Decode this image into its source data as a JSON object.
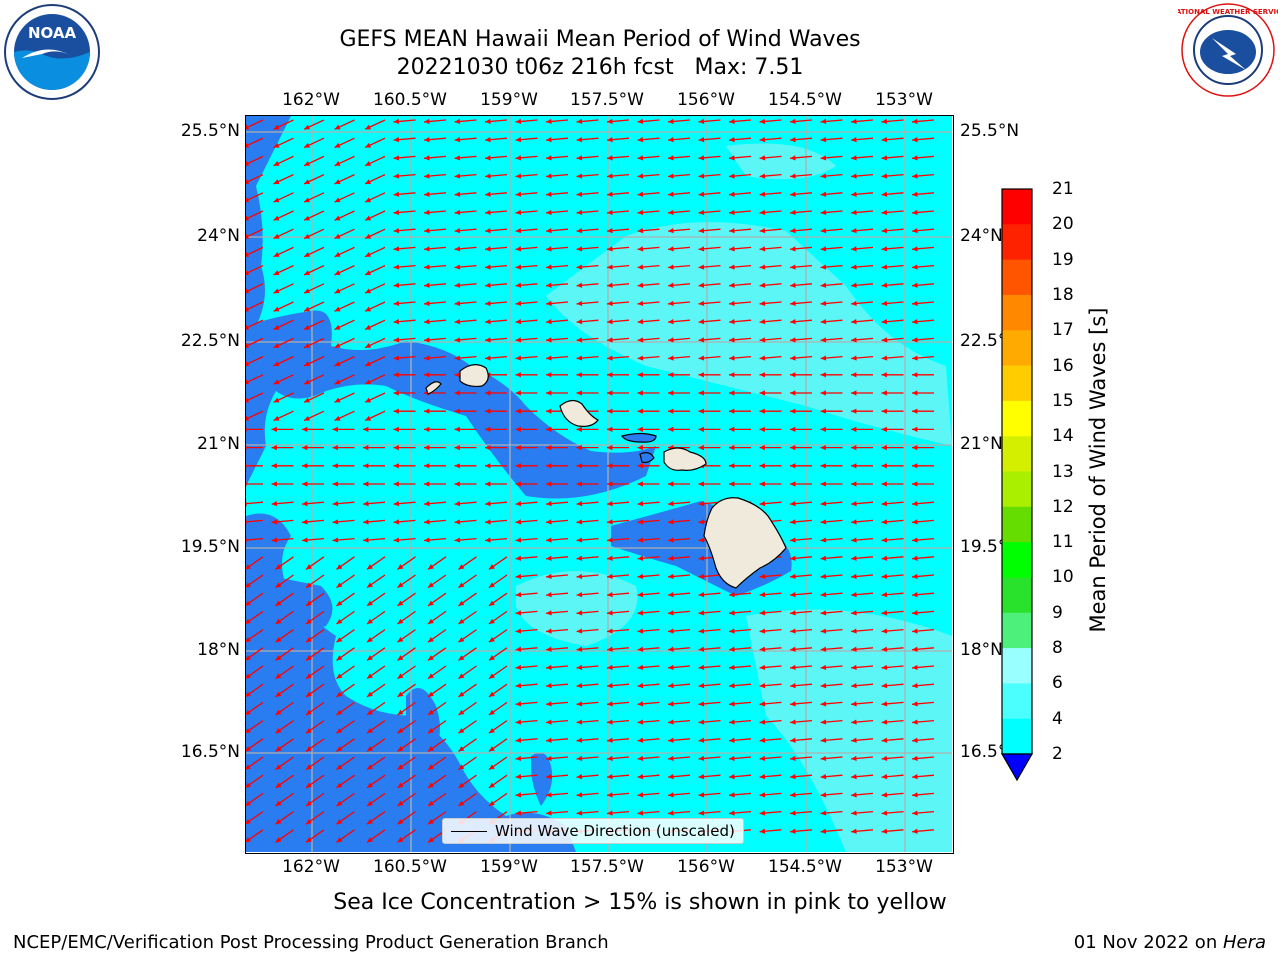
{
  "title": {
    "line1": "GEFS MEAN Hawaii Mean Period of Wind Waves",
    "line2": "20221030 t06z 216h fcst   Max: 7.51"
  },
  "axes": {
    "lon_labels": [
      "162°W",
      "160.5°W",
      "159°W",
      "157.5°W",
      "156°W",
      "154.5°W",
      "153°W"
    ],
    "lat_labels": [
      "25.5°N",
      "24°N",
      "22.5°N",
      "21°N",
      "19.5°N",
      "18°N",
      "16.5°N"
    ]
  },
  "map": {
    "legend_label": "Wind Wave Direction (unscaled)",
    "land_color": "#efeadb",
    "ocean_shallow_color": "#2a7df0",
    "ocean_color": "#00ffff",
    "ocean_light_color": "#5cf6f6",
    "arrow_color": "#ff0000"
  },
  "colorbar": {
    "label": "Mean Period of Wind Waves [s]",
    "ticks": [
      "2",
      "4",
      "6",
      "8",
      "9",
      "10",
      "11",
      "12",
      "13",
      "14",
      "15",
      "16",
      "17",
      "18",
      "19",
      "20",
      "21"
    ],
    "colors": [
      "#0b79f5",
      "#00ffff",
      "#4bffff",
      "#99ffff",
      "#4cf07a",
      "#28e22c",
      "#00ff00",
      "#66dd00",
      "#aaee00",
      "#d4f000",
      "#ffff00",
      "#ffcc00",
      "#ffaa00",
      "#ff8800",
      "#ff5500",
      "#ff2200",
      "#ff0000"
    ],
    "under_color": "#0000ff"
  },
  "logos": {
    "noaa_text": "NOAA",
    "nws_text": "NATIONAL WEATHER SERVICE"
  },
  "footer": {
    "ice_note": "Sea Ice Concentration > 15% is shown in pink to yellow",
    "left": "NCEP/EMC/Verification Post Processing Product Generation Branch",
    "right_date": "01 Nov 2022 on ",
    "right_machine": "Hera"
  }
}
